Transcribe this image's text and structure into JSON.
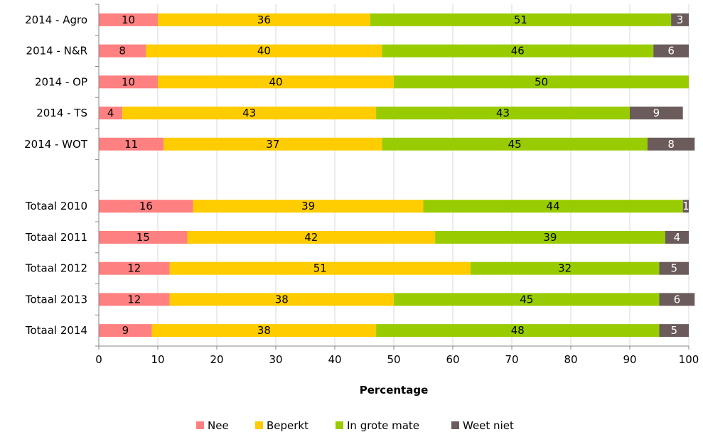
{
  "chart_data": {
    "type": "bar",
    "orientation": "horizontal",
    "stacked": true,
    "categories": [
      "2014 - Agro",
      "2014 - N&R",
      "2014 - OP",
      "2014 - TS",
      "2014 - WOT",
      "",
      "Totaal 2010",
      "Totaal 2011",
      "Totaal 2012",
      "Totaal 2013",
      "Totaal 2014"
    ],
    "series": [
      {
        "name": "Nee",
        "color": "#ff8080",
        "values": [
          10,
          8,
          10,
          4,
          11,
          null,
          16,
          15,
          12,
          12,
          9
        ]
      },
      {
        "name": "Beperkt",
        "color": "#ffcc00",
        "values": [
          36,
          40,
          40,
          43,
          37,
          null,
          39,
          42,
          51,
          38,
          38
        ]
      },
      {
        "name": "In grote mate",
        "color": "#99cc00",
        "values": [
          51,
          46,
          50,
          43,
          45,
          null,
          44,
          39,
          32,
          45,
          48
        ]
      },
      {
        "name": "Weet niet",
        "color": "#6b5b5b",
        "values": [
          3,
          6,
          null,
          9,
          8,
          null,
          1,
          4,
          5,
          6,
          5
        ]
      }
    ],
    "xlabel": "Percentage",
    "xlim": [
      0,
      100
    ],
    "xticks": [
      0,
      10,
      20,
      30,
      40,
      50,
      60,
      70,
      80,
      90,
      100
    ],
    "grid": true,
    "legend_position": "bottom"
  }
}
